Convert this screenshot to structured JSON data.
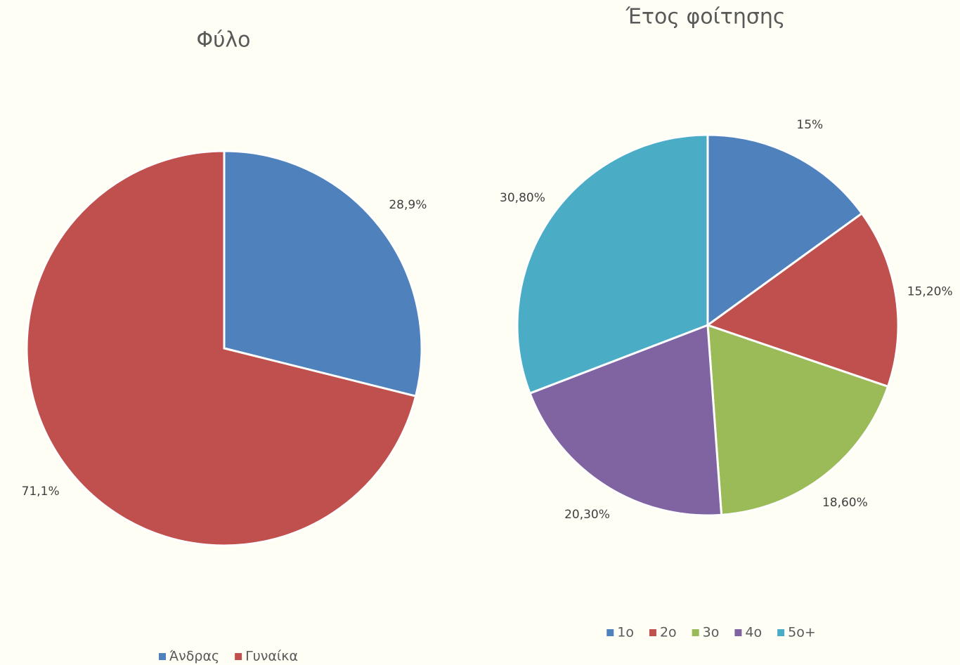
{
  "chart_data": [
    {
      "type": "pie",
      "title": "Φύλο",
      "categories": [
        "Άνδρας",
        "Γυναίκα"
      ],
      "values": [
        28.9,
        71.1
      ],
      "value_labels": [
        "28,9%",
        "71,1%"
      ],
      "colors": [
        "#4f81bd",
        "#c0504d"
      ]
    },
    {
      "type": "pie",
      "title": "Έτος φοίτησης",
      "categories": [
        "1ο",
        "2ο",
        "3ο",
        "4ο",
        "5ο+"
      ],
      "values": [
        15,
        15.2,
        18.6,
        20.3,
        30.8
      ],
      "value_labels": [
        "15%",
        "15,20%",
        "18,60%",
        "20,30%",
        "30,80%"
      ],
      "colors": [
        "#4f81bd",
        "#c0504d",
        "#9bbb59",
        "#8064a2",
        "#4bacc6"
      ]
    }
  ]
}
